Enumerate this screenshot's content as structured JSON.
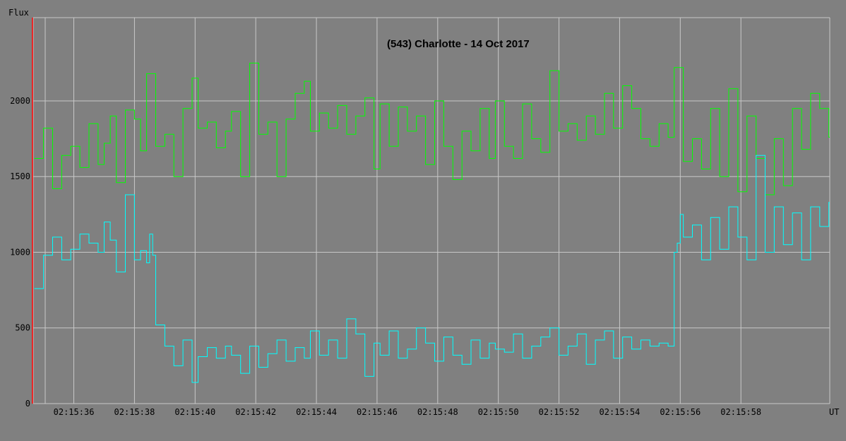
{
  "chart_data": {
    "type": "line",
    "title": "(543) Charlotte - 14 Oct 2017",
    "ylabel": "Flux",
    "xlabel": "UT",
    "ylim": [
      0,
      2550
    ],
    "xlim": [
      "02:15:34.66",
      "02:16:00.93"
    ],
    "x_ticks": [
      "02:15:36",
      "02:15:38",
      "02:15:40",
      "02:15:42",
      "02:15:44",
      "02:15:46",
      "02:15:48",
      "02:15:50",
      "02:15:52",
      "02:15:54",
      "02:15:56",
      "02:15:58"
    ],
    "y_ticks": [
      0,
      500,
      1000,
      1500,
      2000
    ],
    "grid": true,
    "colors": {
      "background": "#808080",
      "grid": "#c8c8c8",
      "marker": "#ff0000"
    },
    "series": [
      {
        "color": "#00ff00",
        "x": [
          "02:15:34.7",
          "02:15:35.0",
          "02:15:35.3",
          "02:15:35.6",
          "02:15:35.9",
          "02:15:36.2",
          "02:15:36.5",
          "02:15:36.8",
          "02:15:37.0",
          "02:15:37.2",
          "02:15:37.4",
          "02:15:37.7",
          "02:15:38.0",
          "02:15:38.2",
          "02:15:38.4",
          "02:15:38.7",
          "02:15:39.0",
          "02:15:39.3",
          "02:15:39.6",
          "02:15:39.9",
          "02:15:40.1",
          "02:15:40.4",
          "02:15:40.7",
          "02:15:41.0",
          "02:15:41.2",
          "02:15:41.5",
          "02:15:41.8",
          "02:15:42.1",
          "02:15:42.4",
          "02:15:42.7",
          "02:15:43.0",
          "02:15:43.3",
          "02:15:43.6",
          "02:15:43.8",
          "02:15:44.1",
          "02:15:44.4",
          "02:15:44.7",
          "02:15:45.0",
          "02:15:45.3",
          "02:15:45.6",
          "02:15:45.9",
          "02:15:46.1",
          "02:15:46.4",
          "02:15:46.7",
          "02:15:47.0",
          "02:15:47.3",
          "02:15:47.6",
          "02:15:47.9",
          "02:15:48.2",
          "02:15:48.5",
          "02:15:48.8",
          "02:15:49.1",
          "02:15:49.4",
          "02:15:49.7",
          "02:15:49.9",
          "02:15:50.2",
          "02:15:50.5",
          "02:15:50.8",
          "02:15:51.1",
          "02:15:51.4",
          "02:15:51.7",
          "02:15:52.0",
          "02:15:52.3",
          "02:15:52.6",
          "02:15:52.9",
          "02:15:53.2",
          "02:15:53.5",
          "02:15:53.8",
          "02:15:54.1",
          "02:15:54.4",
          "02:15:54.7",
          "02:15:55.0",
          "02:15:55.3",
          "02:15:55.6",
          "02:15:55.8",
          "02:15:56.1",
          "02:15:56.4",
          "02:15:56.7",
          "02:15:57.0",
          "02:15:57.3",
          "02:15:57.6",
          "02:15:57.9",
          "02:15:58.2",
          "02:15:58.5",
          "02:15:58.8",
          "02:15:59.1",
          "02:15:59.4",
          "02:15:59.7",
          "02:16:00.0",
          "02:16:00.3",
          "02:16:00.6",
          "02:16:00.9"
        ],
        "values": [
          1620,
          1820,
          1420,
          1640,
          1700,
          1560,
          1850,
          1580,
          1720,
          1900,
          1460,
          1940,
          1880,
          1670,
          2180,
          1700,
          1780,
          1500,
          1950,
          2150,
          1820,
          1860,
          1690,
          1800,
          1930,
          1500,
          2250,
          1780,
          1860,
          1500,
          1880,
          2050,
          2130,
          1800,
          1920,
          1820,
          1970,
          1780,
          1900,
          2020,
          1550,
          1980,
          1700,
          1960,
          1800,
          1900,
          1580,
          2000,
          1700,
          1480,
          1800,
          1670,
          1950,
          1620,
          2000,
          1700,
          1620,
          1980,
          1750,
          1660,
          2200,
          1800,
          1850,
          1740,
          1900,
          1780,
          2050,
          1820,
          2100,
          1950,
          1750,
          1700,
          1850,
          1760,
          2220,
          1600,
          1750,
          1550,
          1950,
          1500,
          2080,
          1400,
          1900,
          1620,
          1380,
          1750,
          1440,
          1950,
          1680,
          2050,
          1950,
          1760
        ]
      },
      {
        "color": "#00ffff",
        "x": [
          "02:15:34.7",
          "02:15:35.0",
          "02:15:35.3",
          "02:15:35.6",
          "02:15:35.9",
          "02:15:36.2",
          "02:15:36.5",
          "02:15:36.8",
          "02:15:37.0",
          "02:15:37.2",
          "02:15:37.4",
          "02:15:37.7",
          "02:15:38.0",
          "02:15:38.2",
          "02:15:38.4",
          "02:15:38.5",
          "02:15:38.6",
          "02:15:38.7",
          "02:15:39.0",
          "02:15:39.3",
          "02:15:39.6",
          "02:15:39.9",
          "02:15:40.1",
          "02:15:40.4",
          "02:15:40.7",
          "02:15:41.0",
          "02:15:41.2",
          "02:15:41.5",
          "02:15:41.8",
          "02:15:42.1",
          "02:15:42.4",
          "02:15:42.7",
          "02:15:43.0",
          "02:15:43.3",
          "02:15:43.6",
          "02:15:43.8",
          "02:15:44.1",
          "02:15:44.4",
          "02:15:44.7",
          "02:15:45.0",
          "02:15:45.3",
          "02:15:45.6",
          "02:15:45.9",
          "02:15:46.1",
          "02:15:46.4",
          "02:15:46.7",
          "02:15:47.0",
          "02:15:47.3",
          "02:15:47.6",
          "02:15:47.9",
          "02:15:48.2",
          "02:15:48.5",
          "02:15:48.8",
          "02:15:49.1",
          "02:15:49.4",
          "02:15:49.7",
          "02:15:49.9",
          "02:15:50.2",
          "02:15:50.5",
          "02:15:50.8",
          "02:15:51.1",
          "02:15:51.4",
          "02:15:51.7",
          "02:15:52.0",
          "02:15:52.3",
          "02:15:52.6",
          "02:15:52.9",
          "02:15:53.2",
          "02:15:53.5",
          "02:15:53.8",
          "02:15:54.1",
          "02:15:54.4",
          "02:15:54.7",
          "02:15:55.0",
          "02:15:55.3",
          "02:15:55.6",
          "02:15:55.8",
          "02:15:55.9",
          "02:15:56.0",
          "02:15:56.1",
          "02:15:56.4",
          "02:15:56.7",
          "02:15:57.0",
          "02:15:57.3",
          "02:15:57.6",
          "02:15:57.9",
          "02:15:58.2",
          "02:15:58.5",
          "02:15:58.8",
          "02:15:59.1",
          "02:15:59.4",
          "02:15:59.7",
          "02:16:00.0",
          "02:16:00.3",
          "02:16:00.6",
          "02:16:00.9"
        ],
        "values": [
          760,
          980,
          1100,
          950,
          1020,
          1120,
          1060,
          1000,
          1200,
          1080,
          870,
          1380,
          950,
          1010,
          930,
          1120,
          980,
          520,
          380,
          250,
          420,
          140,
          310,
          370,
          300,
          380,
          320,
          200,
          380,
          240,
          330,
          420,
          280,
          370,
          300,
          480,
          320,
          420,
          300,
          560,
          460,
          180,
          400,
          320,
          480,
          300,
          360,
          500,
          400,
          280,
          440,
          320,
          260,
          420,
          300,
          400,
          360,
          340,
          460,
          300,
          380,
          440,
          500,
          320,
          380,
          460,
          260,
          420,
          480,
          300,
          440,
          360,
          420,
          380,
          400,
          380,
          1000,
          1060,
          1250,
          1100,
          1180,
          950,
          1230,
          1020,
          1300,
          1100,
          950,
          1640,
          1000,
          1300,
          1050,
          1260,
          950,
          1300,
          1170,
          1330
        ]
      }
    ]
  }
}
